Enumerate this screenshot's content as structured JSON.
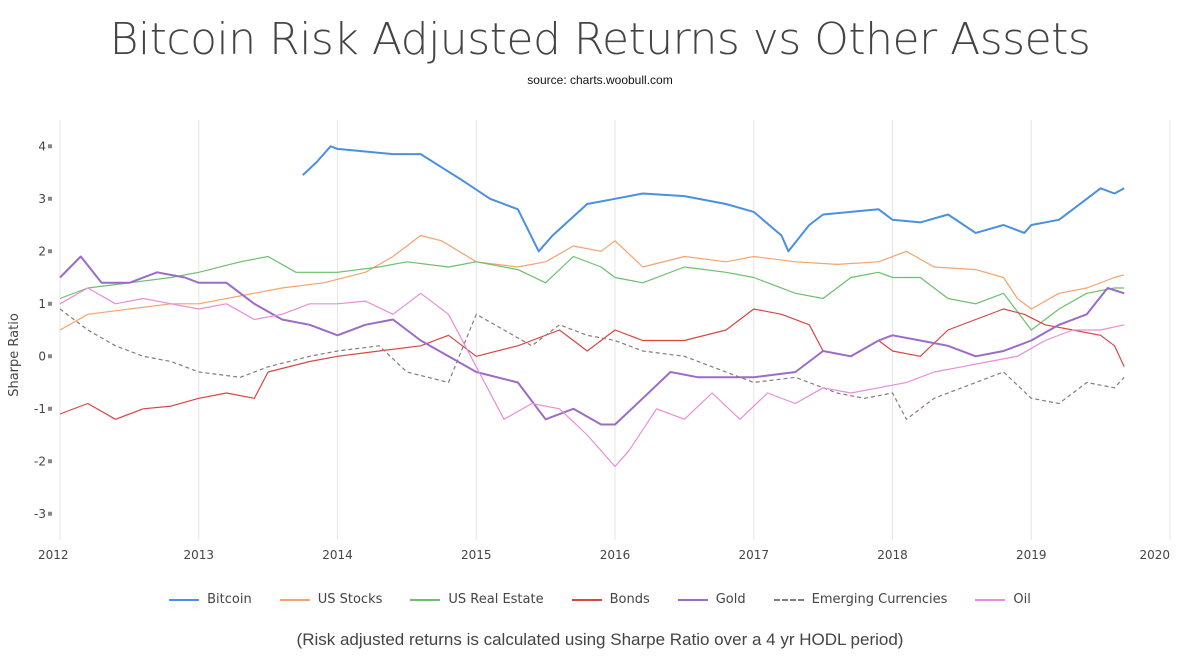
{
  "chart_data": {
    "type": "line",
    "title": "Bitcoin Risk Adjusted Returns vs Other Assets",
    "subtitle": "source: charts.woobull.com",
    "footnote": "(Risk adjusted returns is calculated using Sharpe Ratio over a 4 yr HODL period)",
    "xlabel": "",
    "ylabel": "Sharpe Ratio",
    "xlim": [
      2012,
      2020
    ],
    "ylim": [
      -3.5,
      4.5
    ],
    "xticks": [
      "2012",
      "2013",
      "2014",
      "2015",
      "2016",
      "2017",
      "2018",
      "2019",
      "2020"
    ],
    "yticks": [
      "4",
      "3",
      "2",
      "1",
      "0",
      "-1",
      "-2",
      "-3"
    ],
    "legend_position": "bottom",
    "series": [
      {
        "name": "Bitcoin",
        "color": "#4a90e2",
        "width": 2,
        "dash": "",
        "x": [
          2013.75,
          2013.85,
          2013.95,
          2014.0,
          2014.2,
          2014.4,
          2014.6,
          2014.75,
          2014.9,
          2015.1,
          2015.3,
          2015.45,
          2015.55,
          2015.8,
          2016.0,
          2016.2,
          2016.5,
          2016.8,
          2017.0,
          2017.2,
          2017.25,
          2017.4,
          2017.5,
          2017.7,
          2017.9,
          2018.0,
          2018.2,
          2018.4,
          2018.6,
          2018.8,
          2018.95,
          2019.0,
          2019.2,
          2019.4,
          2019.5,
          2019.6,
          2019.67
        ],
        "y": [
          3.45,
          3.7,
          4.0,
          3.95,
          3.9,
          3.85,
          3.85,
          3.6,
          3.35,
          3.0,
          2.8,
          2.0,
          2.3,
          2.9,
          3.0,
          3.1,
          3.05,
          2.9,
          2.75,
          2.3,
          2.0,
          2.5,
          2.7,
          2.75,
          2.8,
          2.6,
          2.55,
          2.7,
          2.35,
          2.5,
          2.35,
          2.5,
          2.6,
          3.0,
          3.2,
          3.1,
          3.2
        ]
      },
      {
        "name": "US Stocks",
        "color": "#f5a36e",
        "width": 1.2,
        "dash": "",
        "x": [
          2012.0,
          2012.2,
          2012.5,
          2012.8,
          2013.0,
          2013.3,
          2013.6,
          2013.9,
          2014.2,
          2014.4,
          2014.6,
          2014.75,
          2015.0,
          2015.3,
          2015.5,
          2015.7,
          2015.9,
          2016.0,
          2016.2,
          2016.5,
          2016.8,
          2017.0,
          2017.3,
          2017.6,
          2017.9,
          2018.1,
          2018.3,
          2018.6,
          2018.8,
          2018.9,
          2019.0,
          2019.2,
          2019.4,
          2019.6,
          2019.67
        ],
        "y": [
          0.5,
          0.8,
          0.9,
          1.0,
          1.0,
          1.15,
          1.3,
          1.4,
          1.6,
          1.9,
          2.3,
          2.2,
          1.8,
          1.7,
          1.8,
          2.1,
          2.0,
          2.2,
          1.7,
          1.9,
          1.8,
          1.9,
          1.8,
          1.75,
          1.8,
          2.0,
          1.7,
          1.65,
          1.5,
          1.1,
          0.9,
          1.2,
          1.3,
          1.5,
          1.55
        ]
      },
      {
        "name": "US Real Estate",
        "color": "#6cbf6c",
        "width": 1.2,
        "dash": "",
        "x": [
          2012.0,
          2012.2,
          2012.5,
          2012.8,
          2013.0,
          2013.3,
          2013.5,
          2013.7,
          2014.0,
          2014.3,
          2014.5,
          2014.8,
          2015.0,
          2015.3,
          2015.5,
          2015.7,
          2015.9,
          2016.0,
          2016.2,
          2016.5,
          2016.8,
          2017.0,
          2017.3,
          2017.5,
          2017.7,
          2017.9,
          2018.0,
          2018.2,
          2018.4,
          2018.6,
          2018.8,
          2019.0,
          2019.2,
          2019.4,
          2019.6,
          2019.67
        ],
        "y": [
          1.1,
          1.3,
          1.4,
          1.5,
          1.6,
          1.8,
          1.9,
          1.6,
          1.6,
          1.7,
          1.8,
          1.7,
          1.8,
          1.65,
          1.4,
          1.9,
          1.7,
          1.5,
          1.4,
          1.7,
          1.6,
          1.5,
          1.2,
          1.1,
          1.5,
          1.6,
          1.5,
          1.5,
          1.1,
          1.0,
          1.2,
          0.5,
          0.9,
          1.2,
          1.3,
          1.3
        ]
      },
      {
        "name": "Bonds",
        "color": "#d94545",
        "width": 1.2,
        "dash": "",
        "x": [
          2012.0,
          2012.2,
          2012.4,
          2012.6,
          2012.8,
          2013.0,
          2013.2,
          2013.4,
          2013.5,
          2013.8,
          2014.0,
          2014.3,
          2014.6,
          2014.8,
          2015.0,
          2015.3,
          2015.6,
          2015.8,
          2016.0,
          2016.2,
          2016.5,
          2016.8,
          2017.0,
          2017.2,
          2017.4,
          2017.5,
          2017.7,
          2017.9,
          2018.0,
          2018.2,
          2018.4,
          2018.6,
          2018.8,
          2018.95,
          2019.1,
          2019.3,
          2019.5,
          2019.6,
          2019.67
        ],
        "y": [
          -1.1,
          -0.9,
          -1.2,
          -1.0,
          -0.95,
          -0.8,
          -0.7,
          -0.8,
          -0.3,
          -0.1,
          0.0,
          0.1,
          0.2,
          0.4,
          0.0,
          0.2,
          0.5,
          0.1,
          0.5,
          0.3,
          0.3,
          0.5,
          0.9,
          0.8,
          0.6,
          0.1,
          0.0,
          0.3,
          0.1,
          0.0,
          0.5,
          0.7,
          0.9,
          0.8,
          0.6,
          0.5,
          0.4,
          0.2,
          -0.2
        ]
      },
      {
        "name": "Gold",
        "color": "#9b6cc7",
        "width": 2,
        "dash": "",
        "x": [
          2012.0,
          2012.15,
          2012.3,
          2012.5,
          2012.7,
          2012.9,
          2013.0,
          2013.2,
          2013.4,
          2013.6,
          2013.8,
          2014.0,
          2014.2,
          2014.4,
          2014.6,
          2014.8,
          2015.0,
          2015.3,
          2015.5,
          2015.7,
          2015.9,
          2016.0,
          2016.2,
          2016.4,
          2016.6,
          2016.8,
          2017.0,
          2017.3,
          2017.5,
          2017.7,
          2017.9,
          2018.0,
          2018.2,
          2018.4,
          2018.6,
          2018.8,
          2019.0,
          2019.2,
          2019.4,
          2019.55,
          2019.67
        ],
        "y": [
          1.5,
          1.9,
          1.4,
          1.4,
          1.6,
          1.5,
          1.4,
          1.4,
          1.0,
          0.7,
          0.6,
          0.4,
          0.6,
          0.7,
          0.3,
          0.0,
          -0.3,
          -0.5,
          -1.2,
          -1.0,
          -1.3,
          -1.3,
          -0.8,
          -0.3,
          -0.4,
          -0.4,
          -0.4,
          -0.3,
          0.1,
          0.0,
          0.3,
          0.4,
          0.3,
          0.2,
          0.0,
          0.1,
          0.3,
          0.6,
          0.8,
          1.3,
          1.2
        ]
      },
      {
        "name": "Emerging Currencies",
        "color": "#8a7a7a",
        "width": 1.2,
        "dash": "4,3",
        "x": [
          2012.0,
          2012.2,
          2012.4,
          2012.6,
          2012.8,
          2013.0,
          2013.3,
          2013.5,
          2013.8,
          2014.0,
          2014.3,
          2014.5,
          2014.8,
          2015.0,
          2015.2,
          2015.4,
          2015.6,
          2015.8,
          2016.0,
          2016.2,
          2016.5,
          2016.8,
          2017.0,
          2017.3,
          2017.6,
          2017.8,
          2018.0,
          2018.1,
          2018.3,
          2018.6,
          2018.8,
          2019.0,
          2019.2,
          2019.4,
          2019.6,
          2019.67
        ],
        "y": [
          0.9,
          0.5,
          0.2,
          0.0,
          -0.1,
          -0.3,
          -0.4,
          -0.2,
          0.0,
          0.1,
          0.2,
          -0.3,
          -0.5,
          0.8,
          0.5,
          0.2,
          0.6,
          0.4,
          0.3,
          0.1,
          0.0,
          -0.3,
          -0.5,
          -0.4,
          -0.7,
          -0.8,
          -0.7,
          -1.2,
          -0.8,
          -0.5,
          -0.3,
          -0.8,
          -0.9,
          -0.5,
          -0.6,
          -0.4
        ]
      },
      {
        "name": "Oil",
        "color": "#e98cdb",
        "width": 1.2,
        "dash": "",
        "x": [
          2012.0,
          2012.2,
          2012.4,
          2012.6,
          2012.8,
          2013.0,
          2013.2,
          2013.4,
          2013.6,
          2013.8,
          2014.0,
          2014.2,
          2014.4,
          2014.6,
          2014.8,
          2015.0,
          2015.2,
          2015.4,
          2015.6,
          2015.8,
          2016.0,
          2016.1,
          2016.3,
          2016.5,
          2016.7,
          2016.9,
          2017.1,
          2017.3,
          2017.5,
          2017.7,
          2017.9,
          2018.1,
          2018.3,
          2018.5,
          2018.7,
          2018.9,
          2019.1,
          2019.3,
          2019.5,
          2019.67
        ],
        "y": [
          1.0,
          1.3,
          1.0,
          1.1,
          1.0,
          0.9,
          1.0,
          0.7,
          0.8,
          1.0,
          1.0,
          1.05,
          0.8,
          1.2,
          0.8,
          -0.2,
          -1.2,
          -0.9,
          -1.0,
          -1.5,
          -2.1,
          -1.8,
          -1.0,
          -1.2,
          -0.7,
          -1.2,
          -0.7,
          -0.9,
          -0.6,
          -0.7,
          -0.6,
          -0.5,
          -0.3,
          -0.2,
          -0.1,
          0.0,
          0.3,
          0.5,
          0.5,
          0.6
        ]
      }
    ]
  }
}
